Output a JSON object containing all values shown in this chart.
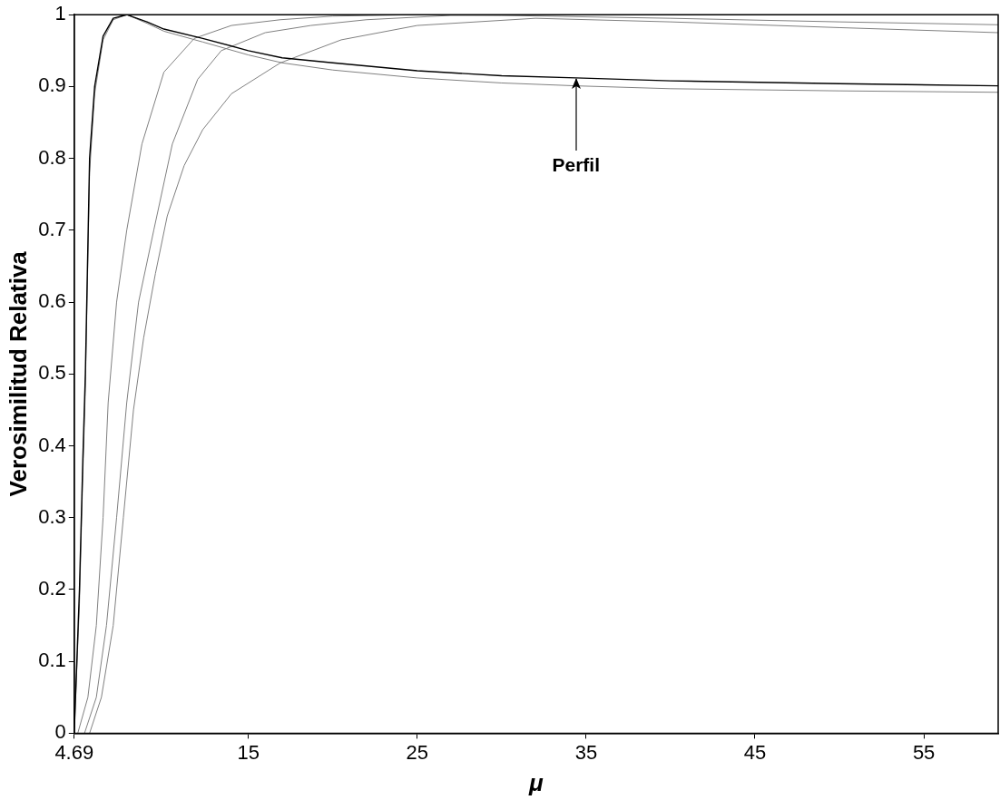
{
  "chart_data": {
    "type": "line",
    "xlabel": "μ",
    "ylabel": "Verosimilitud Relativa",
    "xlim": [
      4.69,
      59.4
    ],
    "xticks": [
      4.69,
      15,
      25,
      35,
      45,
      55
    ],
    "ylim": [
      0,
      1
    ],
    "yticks": [
      0,
      {
        "value": 0.1,
        "label": "0.1"
      },
      {
        "value": 0.2,
        "label": "0.2"
      },
      {
        "value": 0.3,
        "label": "0.3"
      },
      {
        "value": 0.4,
        "label": "0.4"
      },
      {
        "value": 0.5,
        "label": "0.5"
      },
      {
        "value": 0.6,
        "label": "0.6"
      },
      {
        "value": 0.7,
        "label": "0.7"
      },
      {
        "value": 0.8,
        "label": "0.8"
      },
      {
        "value": 0.9,
        "label": "0.9"
      },
      1
    ],
    "grid": false,
    "legend": false,
    "marker": "none",
    "line_style": "solid",
    "annotations": [
      {
        "text": "Perfil",
        "x": 34.4,
        "y": 0.912
      }
    ],
    "series": [
      {
        "color": "#000000",
        "x": [
          4.69,
          5.0,
          5.2,
          5.35,
          5.6,
          5.9,
          6.4,
          7.0,
          7.8,
          9,
          10,
          12.3,
          15,
          17,
          20,
          25,
          30,
          34.4,
          40,
          50,
          59.4
        ],
        "values": [
          0,
          0.2,
          0.38,
          0.5,
          0.8,
          0.9,
          0.97,
          0.995,
          1,
          0.99,
          0.98,
          0.967,
          0.95,
          0.94,
          0.933,
          0.922,
          0.915,
          0.912,
          0.908,
          0.904,
          0.901
        ]
      },
      {
        "color": "#808080",
        "x": [
          4.69,
          5.0,
          5.2,
          5.35,
          5.6,
          5.9,
          6.4,
          7.0,
          7.8,
          9,
          10,
          12.3,
          15,
          17,
          20,
          25,
          30,
          34.4,
          40,
          50,
          59.4
        ],
        "values": [
          0,
          0.18,
          0.36,
          0.48,
          0.78,
          0.89,
          0.965,
          0.993,
          1,
          0.988,
          0.977,
          0.962,
          0.944,
          0.933,
          0.923,
          0.912,
          0.905,
          0.901,
          0.897,
          0.894,
          0.892
        ]
      },
      {
        "color": "#808080",
        "x": [
          4.9,
          5.5,
          6.0,
          6.4,
          6.7,
          7.2,
          7.8,
          8.7,
          10,
          11.8,
          14,
          16.9,
          20,
          25,
          30,
          40,
          50,
          59.4
        ],
        "values": [
          0,
          0.05,
          0.15,
          0.3,
          0.46,
          0.6,
          0.7,
          0.82,
          0.92,
          0.967,
          0.985,
          0.993,
          0.998,
          1,
          0.999,
          0.995,
          0.99,
          0.986
        ]
      },
      {
        "color": "#808080",
        "x": [
          5.3,
          6.0,
          6.6,
          7.2,
          7.8,
          8.5,
          9.4,
          10.5,
          12,
          13.4,
          16,
          18.7,
          22,
          27,
          35,
          45,
          59.4
        ],
        "values": [
          0,
          0.05,
          0.15,
          0.3,
          0.46,
          0.6,
          0.7,
          0.82,
          0.91,
          0.95,
          0.975,
          0.985,
          0.993,
          0.999,
          1,
          1,
          1
        ]
      },
      {
        "color": "#808080",
        "x": [
          5.6,
          6.3,
          7.0,
          7.6,
          8.2,
          8.8,
          9.5,
          10.2,
          11.2,
          12.3,
          14,
          16.9,
          20.5,
          25,
          32,
          40,
          50,
          59.4
        ],
        "values": [
          0,
          0.05,
          0.15,
          0.3,
          0.45,
          0.55,
          0.64,
          0.72,
          0.79,
          0.84,
          0.89,
          0.933,
          0.965,
          0.985,
          0.995,
          0.99,
          0.982,
          0.975
        ]
      }
    ]
  }
}
